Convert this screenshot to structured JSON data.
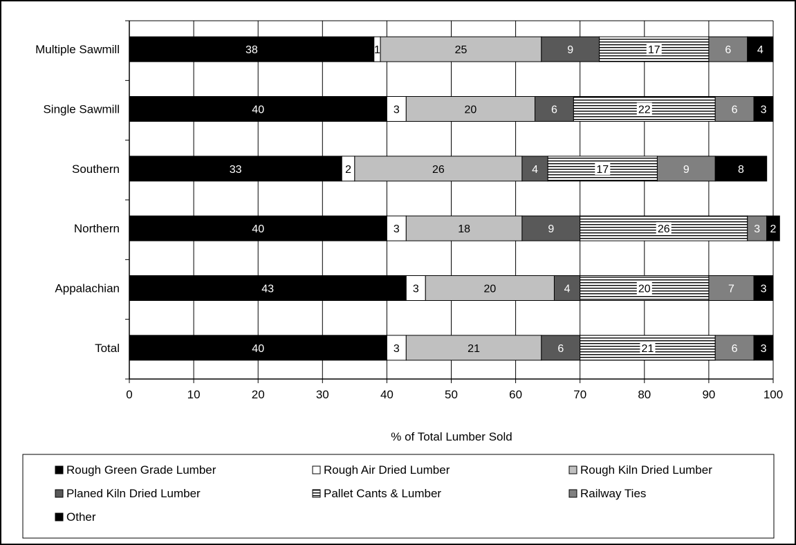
{
  "chart_data": {
    "type": "bar",
    "orientation": "horizontal",
    "stacked": true,
    "categories": [
      "Multiple Sawmill",
      "Single Sawmill",
      "Southern",
      "Northern",
      "Appalachian",
      "Total"
    ],
    "series": [
      {
        "name": "Rough Green Grade Lumber",
        "values": [
          38,
          40,
          33,
          40,
          43,
          40
        ],
        "color": "#000000",
        "label_color": "#ffffff",
        "pattern": "solid"
      },
      {
        "name": "Rough Air Dried Lumber",
        "values": [
          1,
          3,
          2,
          3,
          3,
          3
        ],
        "color": "#ffffff",
        "label_color": "#000000",
        "pattern": "solid"
      },
      {
        "name": "Rough Kiln Dried Lumber",
        "values": [
          25,
          20,
          26,
          18,
          20,
          21
        ],
        "color": "#c0c0c0",
        "label_color": "#000000",
        "pattern": "solid"
      },
      {
        "name": "Planed Kiln Dried Lumber",
        "values": [
          9,
          6,
          4,
          9,
          4,
          6
        ],
        "color": "#595959",
        "label_color": "#ffffff",
        "pattern": "solid"
      },
      {
        "name": "Pallet Cants & Lumber",
        "values": [
          17,
          22,
          17,
          26,
          20,
          21
        ],
        "color": "#ffffff",
        "label_color": "#000000",
        "pattern": "horizontal-lines"
      },
      {
        "name": "Railway Ties",
        "values": [
          6,
          6,
          9,
          3,
          7,
          6
        ],
        "color": "#808080",
        "label_color": "#ffffff",
        "pattern": "solid"
      },
      {
        "name": "Other",
        "values": [
          4,
          3,
          8,
          2,
          3,
          3
        ],
        "color": "#000000",
        "label_color": "#ffffff",
        "pattern": "solid"
      }
    ],
    "xlabel": "% of Total Lumber Sold",
    "ylabel": "",
    "xlim": [
      0,
      100
    ],
    "xticks": [
      "0",
      "10",
      "20",
      "30",
      "40",
      "50",
      "60",
      "70",
      "80",
      "90",
      "100"
    ],
    "grid": "vertical",
    "legend_position": "bottom"
  }
}
